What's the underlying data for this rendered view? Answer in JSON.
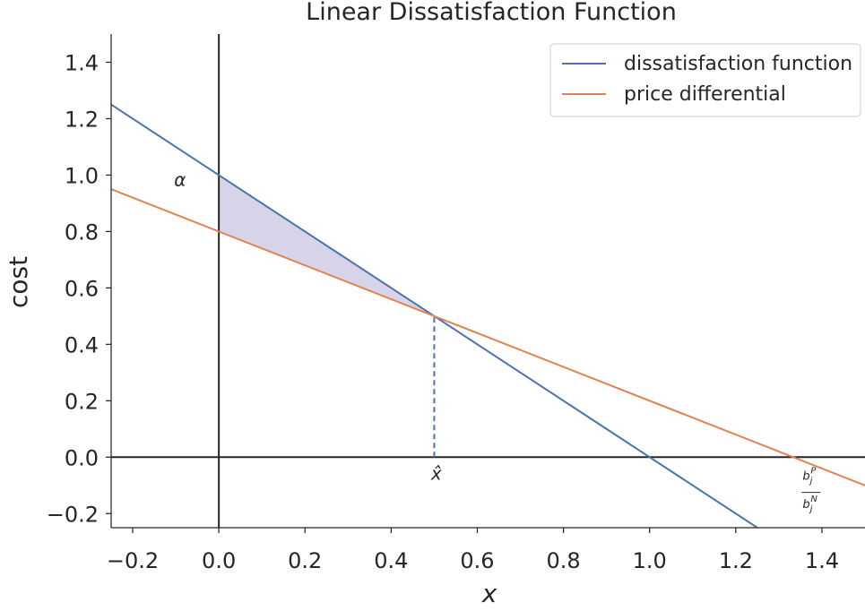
{
  "chart_data": {
    "type": "line",
    "title": "Linear Dissatisfaction Function",
    "xlabel": "x",
    "ylabel": "cost",
    "xlim": [
      -0.25,
      1.5
    ],
    "ylim": [
      -0.25,
      1.5
    ],
    "xticks": [
      -0.2,
      0.0,
      0.2,
      0.4,
      0.6,
      0.8,
      1.0,
      1.2,
      1.4
    ],
    "xtick_labels": [
      "−0.2",
      "0.0",
      "0.2",
      "0.4",
      "0.6",
      "0.8",
      "1.0",
      "1.2",
      "1.4"
    ],
    "yticks": [
      -0.2,
      0.0,
      0.2,
      0.4,
      0.6,
      0.8,
      1.0,
      1.2,
      1.4
    ],
    "ytick_labels": [
      "−0.2",
      "0.0",
      "0.2",
      "0.4",
      "0.6",
      "0.8",
      "1.0",
      "1.2",
      "1.4"
    ],
    "grid": false,
    "legend_position": "top-right",
    "series": [
      {
        "name": "dissatisfaction function",
        "color": "#4c72b0",
        "x": [
          -0.25,
          1.25
        ],
        "y": [
          1.25,
          -0.25
        ]
      },
      {
        "name": "price differential",
        "color": "#dd8452",
        "x": [
          -0.25,
          1.5
        ],
        "y": [
          0.95,
          -0.1
        ]
      }
    ],
    "shaded_region": {
      "color": "#8c84c4",
      "opacity": 0.35,
      "polygon": [
        [
          0.0,
          1.0
        ],
        [
          0.5,
          0.5
        ],
        [
          0.0,
          0.8
        ]
      ]
    },
    "reference_lines": [
      {
        "orientation": "vertical",
        "x": 0.0,
        "color": "#262626"
      },
      {
        "orientation": "horizontal",
        "y": 0.0,
        "color": "#262626"
      }
    ],
    "dashed_segment": {
      "x": 0.5,
      "y_from": 0.0,
      "y_to": 0.5,
      "color": "#4c72b0"
    },
    "annotations": {
      "alpha": {
        "text": "α",
        "x": -0.09,
        "y": 0.98
      },
      "xhat": {
        "text": "x̂",
        "x": 0.505,
        "y": -0.08
      },
      "frac_num": {
        "base": "b",
        "sub": "j",
        "sup": "P",
        "x": 1.355,
        "y": -0.08
      },
      "frac_den": {
        "base": "b",
        "sub": "j",
        "sup": "N",
        "x": 1.355,
        "y": -0.18
      }
    }
  }
}
